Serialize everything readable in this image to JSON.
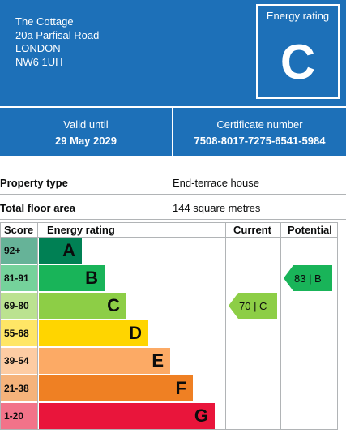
{
  "address": [
    "The Cottage",
    "20a Parfisal Road",
    "LONDON",
    "NW6 1UH"
  ],
  "energy_rating_box": {
    "label": "Energy rating",
    "letter": "C"
  },
  "validity": {
    "valid_label": "Valid until",
    "valid_value": "29 May 2029",
    "cert_label": "Certificate number",
    "cert_value": "7508-8017-7275-6541-5984"
  },
  "property": [
    {
      "key": "Property type",
      "value": "End-terrace house"
    },
    {
      "key": "Total floor area",
      "value": "144 square metres"
    }
  ],
  "epc": {
    "headers": {
      "score": "Score",
      "rating": "Energy rating",
      "current": "Current",
      "potential": "Potential"
    },
    "bands": [
      {
        "score": "92+",
        "letter": "A",
        "color": "#008054",
        "score_bg": "#66b398",
        "text_color": "#0b0c0c"
      },
      {
        "score": "81-91",
        "letter": "B",
        "color": "#19b459",
        "score_bg": "#75d29b",
        "text_color": "#0b0c0c"
      },
      {
        "score": "69-80",
        "letter": "C",
        "color": "#8dce46",
        "score_bg": "#bbe290",
        "text_color": "#0b0c0c"
      },
      {
        "score": "55-68",
        "letter": "D",
        "color": "#ffd500",
        "score_bg": "#ffe666",
        "text_color": "#0b0c0c"
      },
      {
        "score": "39-54",
        "letter": "E",
        "color": "#fcaa65",
        "score_bg": "#fdcca3",
        "text_color": "#0b0c0c"
      },
      {
        "score": "21-38",
        "letter": "F",
        "color": "#ef8023",
        "score_bg": "#f5b37b",
        "text_color": "#0b0c0c"
      },
      {
        "score": "1-20",
        "letter": "G",
        "color": "#e9153b",
        "score_bg": "#f27389",
        "text_color": "#0b0c0c"
      }
    ],
    "current": {
      "label": "70 |  C",
      "band": "C",
      "color": "#8dce46"
    },
    "potential": {
      "label": "83 |  B",
      "band": "B",
      "color": "#19b459"
    }
  }
}
